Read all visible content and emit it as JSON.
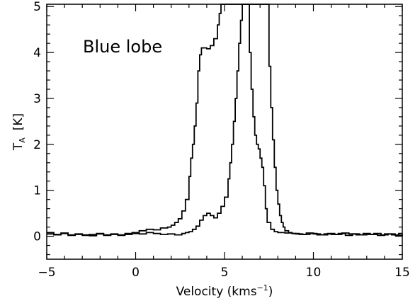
{
  "chart_data": {
    "type": "line",
    "annotation": "Blue lobe",
    "xlabel": "Velocity (kms",
    "xlabel_sup": "−1",
    "xlabel_tail": ")",
    "ylabel": "T",
    "ylabel_sub": "A",
    "ylabel_unit": "[K]",
    "xlim": [
      -5,
      15
    ],
    "ylim": [
      -0.5,
      5.05
    ],
    "grid": false,
    "x_ticks": [
      -5,
      0,
      5,
      10,
      15
    ],
    "y_ticks": [
      0,
      1,
      2,
      3,
      4,
      5
    ],
    "series": [
      {
        "style": "step",
        "color": "#000000",
        "x": [
          -5.0,
          -4.6,
          -4.2,
          -3.8,
          -3.4,
          -3.0,
          -2.6,
          -2.2,
          -1.8,
          -1.4,
          -1.0,
          -0.6,
          -0.2,
          0.2,
          0.6,
          1.0,
          1.4,
          1.8,
          2.0,
          2.2,
          2.4,
          2.6,
          2.8,
          3.0,
          3.1,
          3.2,
          3.3,
          3.4,
          3.5,
          3.6,
          3.7,
          3.8,
          4.0,
          4.2,
          4.4,
          4.6,
          4.7,
          4.8,
          4.9,
          5.0,
          5.1,
          5.2,
          5.4,
          5.6,
          5.8,
          6.0,
          6.2,
          6.4,
          6.6,
          6.8,
          7.0,
          7.2,
          7.3,
          7.4,
          7.5,
          7.6,
          7.7,
          7.8,
          7.9,
          8.0,
          8.1,
          8.2,
          8.3,
          8.4,
          8.6,
          8.8,
          9.0,
          9.4,
          9.8,
          10.2,
          10.6,
          11.0,
          11.4,
          11.8,
          12.2,
          12.6,
          13.0,
          13.4,
          13.8,
          14.2,
          14.6,
          15.0
        ],
        "y": [
          0.05,
          0.03,
          0.06,
          0.02,
          0.04,
          0.03,
          0.01,
          0.05,
          0.02,
          0.04,
          0.03,
          0.06,
          0.08,
          0.12,
          0.15,
          0.14,
          0.18,
          0.2,
          0.24,
          0.3,
          0.38,
          0.55,
          0.8,
          1.3,
          1.7,
          2.0,
          2.4,
          2.9,
          3.6,
          3.95,
          4.1,
          4.1,
          4.08,
          4.15,
          4.3,
          4.6,
          4.85,
          5.05,
          5.05,
          5.05,
          5.05,
          5.05,
          5.05,
          5.05,
          5.05,
          5.05,
          5.05,
          5.05,
          5.05,
          5.05,
          5.05,
          5.05,
          5.05,
          5.05,
          3.7,
          2.8,
          2.1,
          1.5,
          1.0,
          0.7,
          0.45,
          0.3,
          0.2,
          0.12,
          0.08,
          0.06,
          0.05,
          0.04,
          0.06,
          0.03,
          0.05,
          0.04,
          0.06,
          0.02,
          0.05,
          0.03,
          0.04,
          0.06,
          0.03,
          0.05,
          0.02,
          0.04
        ]
      },
      {
        "style": "step",
        "color": "#000000",
        "x": [
          -5.0,
          -4.6,
          -4.2,
          -3.8,
          -3.4,
          -3.0,
          -2.6,
          -2.2,
          -1.8,
          -1.4,
          -1.0,
          -0.6,
          -0.2,
          0.2,
          0.6,
          1.0,
          1.4,
          1.8,
          2.2,
          2.6,
          2.8,
          3.0,
          3.2,
          3.4,
          3.6,
          3.8,
          4.0,
          4.2,
          4.4,
          4.6,
          4.8,
          5.0,
          5.2,
          5.3,
          5.4,
          5.5,
          5.6,
          5.7,
          5.8,
          5.9,
          6.0,
          6.1,
          6.2,
          6.4,
          6.5,
          6.6,
          6.7,
          6.8,
          6.9,
          7.0,
          7.1,
          7.2,
          7.3,
          7.4,
          7.6,
          7.8,
          8.0,
          8.4,
          8.8,
          9.2,
          9.6,
          10.0,
          10.4,
          10.8,
          11.2,
          11.6,
          12.0,
          12.4,
          12.8,
          13.2,
          13.6,
          14.0,
          14.4,
          14.8
        ],
        "y": [
          0.08,
          0.04,
          0.07,
          0.03,
          0.05,
          0.02,
          0.04,
          0.06,
          0.03,
          0.05,
          0.02,
          0.04,
          0.06,
          0.05,
          0.08,
          0.06,
          0.04,
          0.05,
          0.03,
          0.06,
          0.08,
          0.1,
          0.15,
          0.22,
          0.35,
          0.45,
          0.5,
          0.45,
          0.4,
          0.5,
          0.65,
          0.85,
          1.25,
          1.6,
          2.0,
          2.5,
          3.0,
          3.6,
          4.2,
          4.7,
          5.05,
          5.05,
          5.05,
          4.0,
          3.2,
          2.6,
          2.2,
          2.0,
          1.9,
          1.7,
          1.5,
          1.1,
          0.6,
          0.3,
          0.15,
          0.1,
          0.08,
          0.07,
          0.06,
          0.04,
          0.07,
          0.05,
          0.03,
          0.06,
          0.04,
          0.07,
          0.05,
          0.03,
          0.06,
          0.04,
          0.02,
          0.05,
          0.03,
          0.06
        ]
      }
    ]
  }
}
